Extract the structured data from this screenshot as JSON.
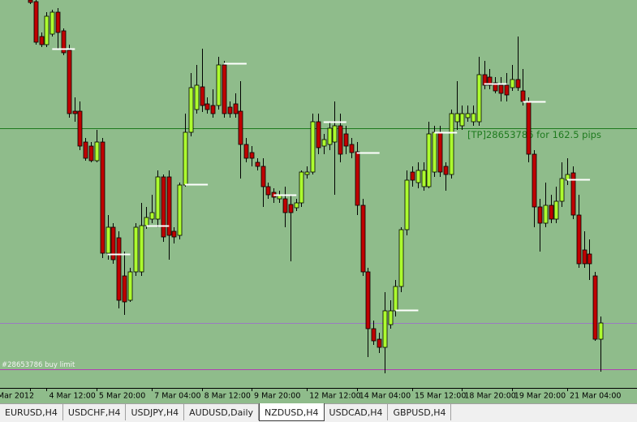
{
  "chart_data": {
    "type": "candlestick",
    "categories": [
      "Mar 2012",
      null,
      null,
      "4 Mar 12:00",
      null,
      null,
      null,
      null,
      null,
      null,
      null,
      null,
      "5 Mar 20:00",
      null,
      null,
      null,
      null,
      null,
      null,
      null,
      null,
      null,
      "7 Mar 04:00",
      null,
      null,
      null,
      null,
      null,
      null,
      null,
      null,
      "8 Mar 12:00",
      null,
      null,
      null,
      null,
      null,
      null,
      null,
      null,
      "9 Mar 20:00",
      null,
      null,
      null,
      null,
      null,
      null,
      null,
      null,
      null,
      "12 Mar 12:00",
      null,
      null,
      null,
      null,
      null,
      null,
      null,
      null,
      "14 Mar 04:00",
      null,
      null,
      null,
      null,
      null,
      null,
      null,
      null,
      null,
      "15 Mar 12:00",
      null,
      null,
      null,
      null,
      null,
      null,
      null,
      null,
      "18 Mar 20:00",
      null,
      null,
      null,
      null,
      null,
      null,
      null,
      null,
      "19 Mar 20:00",
      null,
      null,
      null,
      null,
      null,
      null,
      null,
      null,
      null,
      "21 Mar 04:00",
      null,
      null,
      null,
      null,
      null,
      null
    ],
    "open": [
      0.833,
      0.8329,
      0.83075,
      0.83025,
      0.8309,
      0.83225,
      0.8311,
      0.8299,
      0.82615,
      0.82615,
      0.82425,
      0.824,
      0.8231,
      0.82425,
      0.8174,
      0.819,
      0.81835,
      0.816,
      0.8145,
      0.81625,
      0.81625,
      0.8191,
      0.8195,
      0.8195,
      0.8221,
      0.8221,
      0.81875,
      0.8185,
      0.8216,
      0.82485,
      0.82625,
      0.82765,
      0.8266,
      0.8265,
      0.8265,
      0.829,
      0.8264,
      0.8266,
      0.82615,
      0.8241,
      0.8236,
      0.823,
      0.82275,
      0.8215,
      0.82115,
      0.82075,
      0.82075,
      0.8204,
      0.8202,
      0.8205,
      0.82225,
      0.8224,
      0.8255,
      0.824,
      0.8241,
      0.82425,
      0.82525,
      0.82475,
      0.8241,
      0.82365,
      0.82035,
      0.81625,
      0.81275,
      0.8121,
      0.8116,
      0.813,
      0.81385,
      0.81535,
      0.81885,
      0.8224,
      0.82175,
      0.8215,
      0.8215,
      0.8224,
      0.82485,
      0.82275,
      0.82225,
      0.8255,
      0.82525,
      0.82575,
      0.8255,
      0.8255,
      0.8284,
      0.82825,
      0.8279,
      0.82775,
      0.82775,
      0.8276,
      0.8281,
      0.8274,
      0.82675,
      0.8235,
      0.82025,
      0.81925,
      0.82035,
      0.8195,
      0.8206,
      0.8219,
      0.82235,
      0.81975,
      0.8176,
      0.81735,
      0.816,
      0.8121
    ],
    "high": [
      0.833,
      0.833,
      0.831,
      0.83225,
      0.8324,
      0.8325,
      0.83125,
      0.83025,
      0.827,
      0.82675,
      0.8245,
      0.82425,
      0.825,
      0.8245,
      0.81975,
      0.81925,
      0.81875,
      0.8175,
      0.8165,
      0.81925,
      0.8205,
      0.82025,
      0.821,
      0.8225,
      0.82225,
      0.8225,
      0.819,
      0.82175,
      0.826,
      0.8285,
      0.829,
      0.83,
      0.827,
      0.8275,
      0.8295,
      0.82925,
      0.82675,
      0.82725,
      0.828,
      0.8245,
      0.824,
      0.82325,
      0.82325,
      0.82175,
      0.8214,
      0.82125,
      0.8215,
      0.821,
      0.82075,
      0.8225,
      0.82275,
      0.826,
      0.826,
      0.82475,
      0.8255,
      0.82675,
      0.826,
      0.82525,
      0.8245,
      0.82425,
      0.82075,
      0.8165,
      0.81325,
      0.8125,
      0.815,
      0.8145,
      0.81575,
      0.819,
      0.8225,
      0.82275,
      0.823,
      0.823,
      0.8255,
      0.82525,
      0.82525,
      0.823,
      0.82625,
      0.828,
      0.8265,
      0.8265,
      0.8265,
      0.8295,
      0.82925,
      0.82875,
      0.82825,
      0.82825,
      0.8285,
      0.829,
      0.83075,
      0.82875,
      0.827,
      0.82375,
      0.82075,
      0.82175,
      0.821,
      0.8215,
      0.823,
      0.82325,
      0.82275,
      0.821,
      0.81875,
      0.81825,
      0.81625,
      0.8135
    ],
    "low": [
      0.83275,
      0.83025,
      0.8301,
      0.8301,
      0.83075,
      0.83,
      0.8296,
      0.82575,
      0.8255,
      0.82375,
      0.8231,
      0.823,
      0.823,
      0.8171,
      0.817,
      0.81675,
      0.814,
      0.8136,
      0.8144,
      0.816,
      0.816,
      0.8189,
      0.81925,
      0.819,
      0.8181,
      0.817,
      0.818,
      0.81825,
      0.8215,
      0.8246,
      0.826,
      0.8261,
      0.826,
      0.82575,
      0.82625,
      0.82575,
      0.82575,
      0.82575,
      0.822,
      0.823,
      0.82275,
      0.8225,
      0.82025,
      0.82075,
      0.8205,
      0.8205,
      0.819,
      0.8169,
      0.82,
      0.82025,
      0.822,
      0.82225,
      0.8235,
      0.8235,
      0.82375,
      0.821,
      0.823,
      0.8235,
      0.82325,
      0.81975,
      0.816,
      0.811,
      0.81175,
      0.81125,
      0.81,
      0.81275,
      0.8135,
      0.815,
      0.8185,
      0.8215,
      0.8214,
      0.82125,
      0.8214,
      0.8221,
      0.8221,
      0.82125,
      0.822,
      0.825,
      0.825,
      0.8255,
      0.82525,
      0.82525,
      0.8275,
      0.8275,
      0.82725,
      0.82675,
      0.82675,
      0.8274,
      0.8274,
      0.8265,
      0.823,
      0.819,
      0.8175,
      0.819,
      0.81925,
      0.81925,
      0.82025,
      0.8216,
      0.8195,
      0.8165,
      0.8165,
      0.81575,
      0.812,
      0.8101
    ],
    "close": [
      0.83285,
      0.8304,
      0.83025,
      0.832,
      0.83225,
      0.831,
      0.82975,
      0.826,
      0.826,
      0.824,
      0.82325,
      0.8231,
      0.82425,
      0.8174,
      0.819,
      0.817,
      0.8145,
      0.8144,
      0.81625,
      0.819,
      0.8191,
      0.8196,
      0.8199,
      0.8221,
      0.8184,
      0.8185,
      0.8184,
      0.8216,
      0.82485,
      0.8276,
      0.82775,
      0.8265,
      0.82625,
      0.826,
      0.829,
      0.826,
      0.826,
      0.826,
      0.8241,
      0.82325,
      0.82325,
      0.82275,
      0.8215,
      0.821,
      0.82085,
      0.821,
      0.8199,
      0.8199,
      0.8205,
      0.8224,
      0.8224,
      0.8255,
      0.8239,
      0.8244,
      0.8251,
      0.82525,
      0.8235,
      0.824,
      0.8236,
      0.82035,
      0.81625,
      0.81275,
      0.812,
      0.8116,
      0.81385,
      0.81385,
      0.81535,
      0.81885,
      0.8219,
      0.8219,
      0.8225,
      0.8225,
      0.82475,
      0.82485,
      0.8224,
      0.82225,
      0.826,
      0.826,
      0.826,
      0.826,
      0.826,
      0.8284,
      0.82775,
      0.82775,
      0.8274,
      0.82725,
      0.82715,
      0.8281,
      0.8276,
      0.82675,
      0.8235,
      0.82025,
      0.81925,
      0.82035,
      0.8195,
      0.8206,
      0.822,
      0.82225,
      0.81975,
      0.81675,
      0.81675,
      0.81675,
      0.8121,
      0.8131
    ],
    "ylim": [
      0.8091,
      0.833
    ],
    "up_color": "#adff2f",
    "down_color": "#c00000",
    "background": "#8fbc8b",
    "levels": [
      {
        "value": 0.8251,
        "color": "#1e7a1e",
        "label": "[TP]28653786  for 162.5 pips"
      },
      {
        "value": 0.8131,
        "color": "#9a7cc0"
      },
      {
        "value": 0.81025,
        "color": "#b040b0",
        "label": "#28653786 buy limit"
      }
    ],
    "markers": {
      "color": "#ffffff",
      "index": [
        4,
        14,
        21,
        28,
        35,
        44,
        53,
        59,
        66,
        73,
        82,
        89,
        97
      ],
      "values": [
        0.83,
        0.81735,
        0.8191,
        0.82165,
        0.8291,
        0.821,
        0.8255,
        0.8236,
        0.8139,
        0.82485,
        0.82785,
        0.82675,
        0.82195
      ]
    }
  },
  "tabs": [
    "EURUSD,H4",
    "USDCHF,H4",
    "USDJPY,H4",
    "AUDUSD,Daily",
    "NZDUSD,H4",
    "USDCAD,H4",
    "GBPUSD,H4"
  ],
  "active_tab": 4
}
